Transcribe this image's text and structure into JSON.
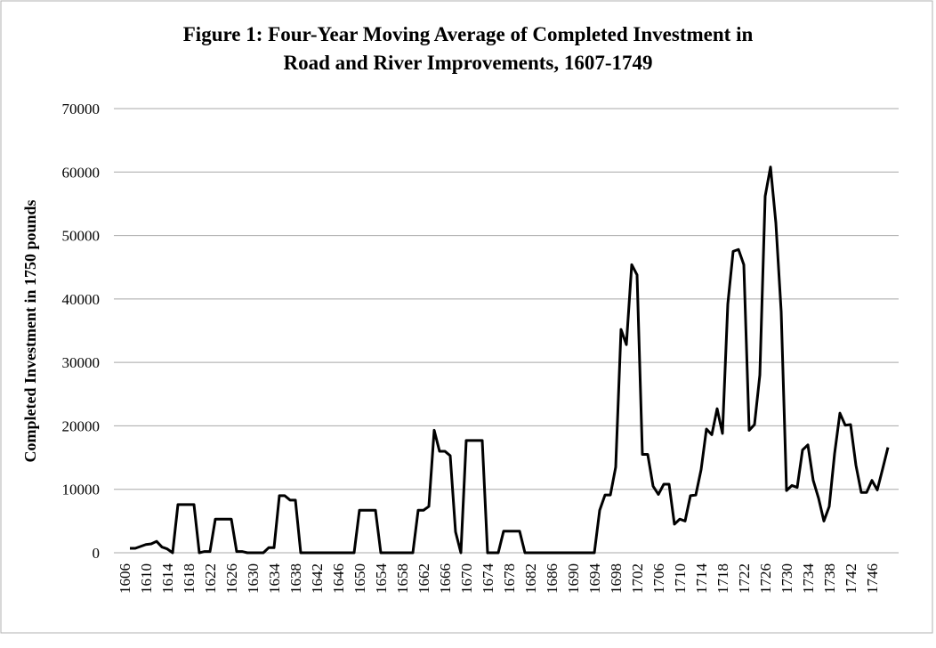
{
  "chart_data": {
    "type": "line",
    "title_lines": [
      "Figure 1: Four-Year Moving Average of Completed Investment in",
      "Road and River Improvements, 1607-1749"
    ],
    "y_label": "Completed Investment in 1750 pounds",
    "x": [
      1607,
      1608,
      1609,
      1610,
      1611,
      1612,
      1613,
      1614,
      1615,
      1616,
      1617,
      1618,
      1619,
      1620,
      1621,
      1622,
      1623,
      1624,
      1625,
      1626,
      1627,
      1628,
      1629,
      1630,
      1631,
      1632,
      1633,
      1634,
      1635,
      1636,
      1637,
      1638,
      1639,
      1640,
      1641,
      1642,
      1643,
      1644,
      1645,
      1646,
      1647,
      1648,
      1649,
      1650,
      1651,
      1652,
      1653,
      1654,
      1655,
      1656,
      1657,
      1658,
      1659,
      1660,
      1661,
      1662,
      1663,
      1664,
      1665,
      1666,
      1667,
      1668,
      1669,
      1670,
      1671,
      1672,
      1673,
      1674,
      1675,
      1676,
      1677,
      1678,
      1679,
      1680,
      1681,
      1682,
      1683,
      1684,
      1685,
      1686,
      1687,
      1688,
      1689,
      1690,
      1691,
      1692,
      1693,
      1694,
      1695,
      1696,
      1697,
      1698,
      1699,
      1700,
      1701,
      1702,
      1703,
      1704,
      1705,
      1706,
      1707,
      1708,
      1709,
      1710,
      1711,
      1712,
      1713,
      1714,
      1715,
      1716,
      1717,
      1718,
      1719,
      1720,
      1721,
      1722,
      1723,
      1724,
      1725,
      1726,
      1727,
      1728,
      1729,
      1730,
      1731,
      1732,
      1733,
      1734,
      1735,
      1736,
      1737,
      1738,
      1739,
      1740,
      1741,
      1742,
      1743,
      1744,
      1745,
      1746,
      1747,
      1748,
      1749
    ],
    "series": [
      {
        "name": "Completed Investment",
        "color": "#000000",
        "values": [
          700,
          700,
          1000,
          1300,
          1400,
          1800,
          900,
          600,
          0,
          7600,
          7600,
          7600,
          7600,
          0,
          200,
          200,
          5300,
          5300,
          5300,
          5300,
          200,
          200,
          0,
          0,
          0,
          0,
          800,
          800,
          9000,
          9000,
          8300,
          8300,
          0,
          0,
          0,
          0,
          0,
          0,
          0,
          0,
          0,
          0,
          0,
          6700,
          6700,
          6700,
          6700,
          0,
          0,
          0,
          0,
          0,
          0,
          0,
          6700,
          6700,
          7300,
          19300,
          16000,
          16000,
          15300,
          3300,
          0,
          17700,
          17700,
          17700,
          17700,
          0,
          0,
          0,
          3400,
          3400,
          3400,
          3400,
          0,
          0,
          0,
          0,
          0,
          0,
          0,
          0,
          0,
          0,
          0,
          0,
          0,
          0,
          6700,
          9100,
          9100,
          13500,
          35200,
          32800,
          45400,
          43800,
          15500,
          15500,
          10500,
          9200,
          10800,
          10800,
          4500,
          5300,
          5000,
          9000,
          9100,
          13100,
          19500,
          18600,
          22700,
          18800,
          39200,
          47500,
          47800,
          45400,
          19300,
          20200,
          28000,
          56200,
          60800,
          52000,
          38000,
          9800,
          10600,
          10300,
          16200,
          17000,
          11400,
          8600,
          5000,
          7300,
          15600,
          22000,
          20100,
          20200,
          13800,
          9500,
          9500,
          11400,
          9900,
          13200,
          16600
        ]
      }
    ],
    "xlim": [
      1604,
      1751
    ],
    "xticks": [
      1606,
      1610,
      1614,
      1618,
      1622,
      1626,
      1630,
      1634,
      1638,
      1642,
      1646,
      1650,
      1654,
      1658,
      1662,
      1666,
      1670,
      1674,
      1678,
      1682,
      1686,
      1690,
      1694,
      1698,
      1702,
      1706,
      1710,
      1714,
      1718,
      1722,
      1726,
      1730,
      1734,
      1738,
      1742,
      1746
    ],
    "ylim": [
      0,
      70000
    ],
    "yticks": [
      0,
      10000,
      20000,
      30000,
      40000,
      50000,
      60000,
      70000
    ],
    "grid": true
  }
}
